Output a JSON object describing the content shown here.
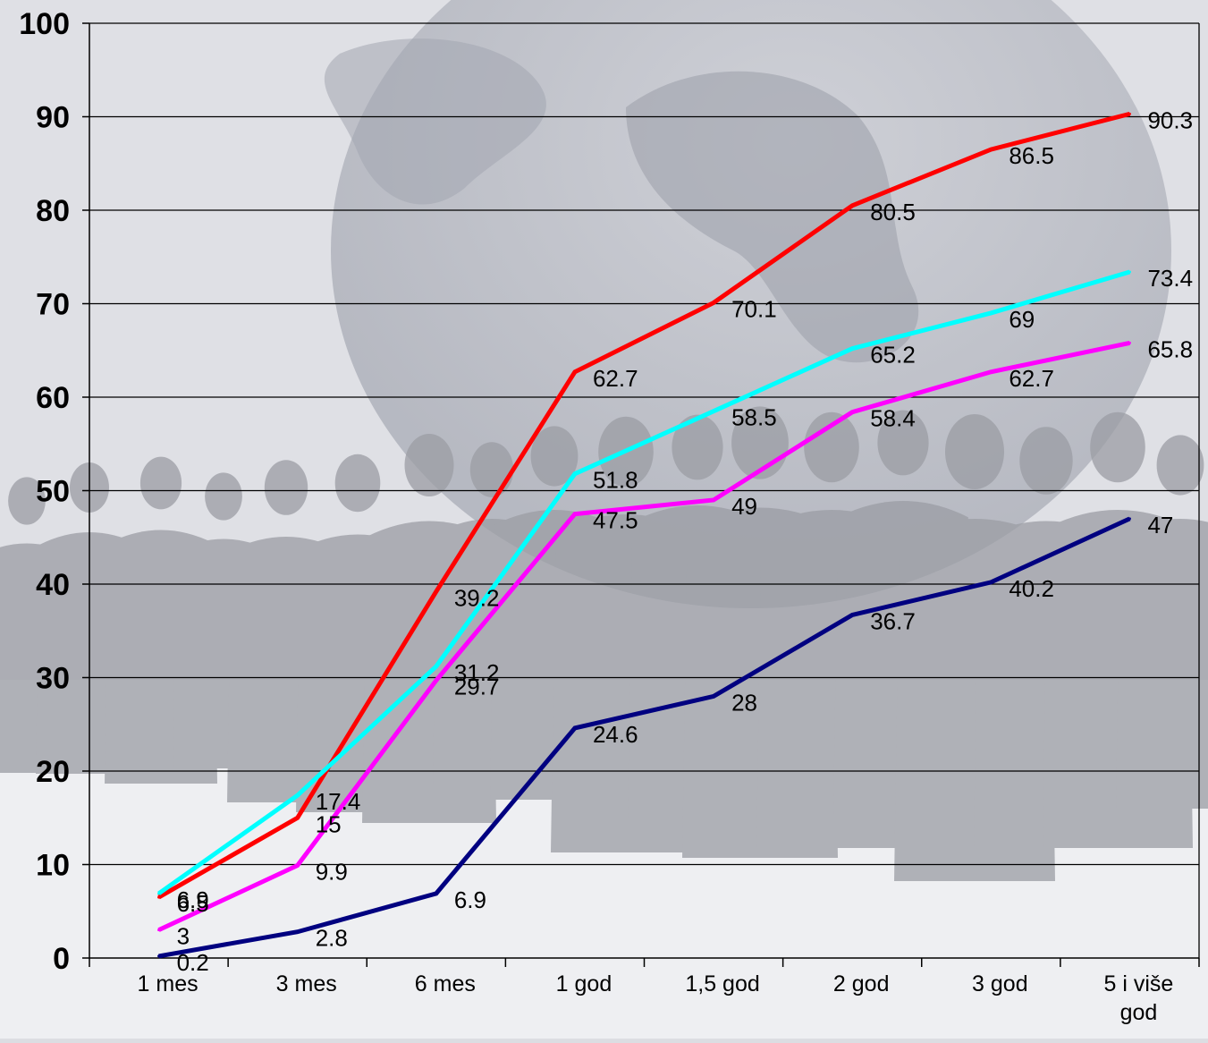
{
  "chart_data": {
    "type": "line",
    "categories": [
      "1 mes",
      "3 mes",
      "6 mes",
      "1 god",
      "1,5 god",
      "2 god",
      "3 god",
      "5 i više god"
    ],
    "ylim": [
      0,
      100
    ],
    "yticks": [
      0,
      10,
      20,
      30,
      40,
      50,
      60,
      70,
      80,
      90,
      100
    ],
    "grid": true,
    "series": [
      {
        "color": "#ff0000",
        "values": [
          6.5,
          15,
          39.2,
          62.7,
          70.1,
          80.5,
          86.5,
          90.3
        ]
      },
      {
        "color": "#00ffff",
        "values": [
          6.9,
          17.4,
          31.2,
          51.8,
          58.5,
          65.2,
          69,
          73.4
        ]
      },
      {
        "color": "#ff00ff",
        "values": [
          3,
          9.9,
          29.7,
          47.5,
          49,
          58.4,
          62.7,
          65.8
        ]
      },
      {
        "color": "#000080",
        "values": [
          0.2,
          2.8,
          6.9,
          24.6,
          28,
          36.7,
          40.2,
          47
        ]
      }
    ]
  }
}
